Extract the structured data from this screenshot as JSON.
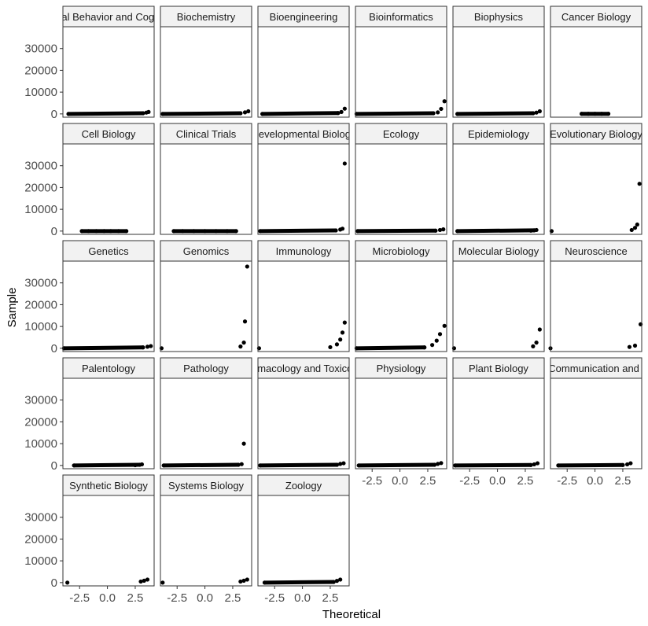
{
  "chart_data": {
    "type": "scatter",
    "subtype": "faceted normal Q-Q plot",
    "xlabel": "Theoretical",
    "ylabel": "Sample",
    "ylim": [
      -1500,
      40000
    ],
    "xlim": [
      -4.0,
      4.2
    ],
    "y_ticks": [
      0,
      10000,
      20000,
      30000
    ],
    "y_tick_labels": [
      "0",
      "10000",
      "20000",
      "30000"
    ],
    "x_ticks": [
      -2.5,
      0.0,
      2.5
    ],
    "x_tick_labels": [
      "-2.5",
      "0.0",
      "2.5"
    ],
    "grid": false,
    "facets": [
      {
        "label": "Animal Behavior and Cognition",
        "points": [
          [
            -3.5,
            0
          ],
          [
            3.2,
            300
          ],
          [
            3.5,
            600
          ],
          [
            3.7,
            900
          ]
        ]
      },
      {
        "label": "Biochemistry",
        "points": [
          [
            -3.8,
            0
          ],
          [
            3.2,
            300
          ],
          [
            3.6,
            700
          ],
          [
            3.9,
            1200
          ]
        ]
      },
      {
        "label": "Bioengineering",
        "points": [
          [
            -3.6,
            0
          ],
          [
            3.2,
            400
          ],
          [
            3.5,
            900
          ],
          [
            3.8,
            2400
          ]
        ]
      },
      {
        "label": "Bioinformatics",
        "points": [
          [
            -3.9,
            0
          ],
          [
            3.0,
            300
          ],
          [
            3.4,
            700
          ],
          [
            3.7,
            2300
          ],
          [
            4.0,
            5800
          ]
        ]
      },
      {
        "label": "Biophysics",
        "points": [
          [
            -3.6,
            0
          ],
          [
            3.2,
            300
          ],
          [
            3.5,
            600
          ],
          [
            3.8,
            1200
          ]
        ]
      },
      {
        "label": "Cancer Biology",
        "points": [
          [
            -1.2,
            50
          ],
          [
            -0.6,
            50
          ],
          [
            0.0,
            50
          ],
          [
            0.6,
            50
          ],
          [
            1.2,
            50
          ]
        ]
      },
      {
        "label": "Cell Biology",
        "points": [
          [
            -2.3,
            0
          ],
          [
            -1.7,
            0
          ],
          [
            -1.0,
            0
          ],
          [
            -0.3,
            0
          ],
          [
            0.3,
            0
          ],
          [
            1.0,
            0
          ],
          [
            1.7,
            0
          ]
        ]
      },
      {
        "label": "Clinical Trials",
        "points": [
          [
            -2.8,
            0
          ],
          [
            -2.0,
            0
          ],
          [
            -1.0,
            0
          ],
          [
            0.0,
            0
          ],
          [
            1.0,
            0
          ],
          [
            2.0,
            0
          ],
          [
            2.8,
            0
          ]
        ]
      },
      {
        "label": "Developmental Biology",
        "points": [
          [
            -3.8,
            0
          ],
          [
            3.0,
            300
          ],
          [
            3.4,
            700
          ],
          [
            3.6,
            1100
          ],
          [
            3.8,
            31000
          ]
        ]
      },
      {
        "label": "Ecology",
        "points": [
          [
            -3.8,
            0
          ],
          [
            3.2,
            200
          ],
          [
            3.6,
            500
          ],
          [
            3.9,
            800
          ]
        ]
      },
      {
        "label": "Epidemiology",
        "points": [
          [
            -3.6,
            0
          ],
          [
            3.0,
            200
          ],
          [
            3.3,
            350
          ],
          [
            3.5,
            500
          ]
        ]
      },
      {
        "label": "Evolutionary Biology",
        "points": [
          [
            -3.9,
            0
          ],
          [
            3.3,
            500
          ],
          [
            3.6,
            1500
          ],
          [
            3.8,
            3000
          ],
          [
            4.0,
            21700
          ]
        ]
      },
      {
        "label": "Genetics",
        "points": [
          [
            -3.9,
            0
          ],
          [
            3.2,
            400
          ],
          [
            3.6,
            700
          ],
          [
            3.9,
            1000
          ]
        ]
      },
      {
        "label": "Genomics",
        "points": [
          [
            -3.9,
            0
          ],
          [
            3.2,
            800
          ],
          [
            3.5,
            2600
          ],
          [
            3.6,
            12300
          ],
          [
            3.8,
            37500
          ]
        ]
      },
      {
        "label": "Immunology",
        "points": [
          [
            -3.9,
            0
          ],
          [
            2.5,
            500
          ],
          [
            3.1,
            1800
          ],
          [
            3.4,
            4000
          ],
          [
            3.6,
            7200
          ],
          [
            3.8,
            11800
          ]
        ]
      },
      {
        "label": "Microbiology",
        "points": [
          [
            -3.9,
            0
          ],
          [
            2.2,
            400
          ],
          [
            2.9,
            1500
          ],
          [
            3.3,
            3500
          ],
          [
            3.6,
            6500
          ],
          [
            4.0,
            10300
          ]
        ]
      },
      {
        "label": "Molecular Biology",
        "points": [
          [
            -3.9,
            0
          ],
          [
            3.2,
            900
          ],
          [
            3.5,
            2600
          ],
          [
            3.8,
            8600
          ]
        ]
      },
      {
        "label": "Neuroscience",
        "points": [
          [
            -4.0,
            0
          ],
          [
            3.1,
            600
          ],
          [
            3.6,
            1200
          ],
          [
            4.1,
            11000
          ]
        ]
      },
      {
        "label": "Palentology",
        "points": [
          [
            -3.0,
            0
          ],
          [
            2.5,
            100
          ],
          [
            2.9,
            300
          ],
          [
            3.1,
            500
          ]
        ]
      },
      {
        "label": "Pathology",
        "points": [
          [
            -3.7,
            0
          ],
          [
            3.0,
            300
          ],
          [
            3.3,
            600
          ],
          [
            3.5,
            10000
          ]
        ]
      },
      {
        "label": "Pharmacology and Toxicology",
        "points": [
          [
            -3.8,
            0
          ],
          [
            3.1,
            300
          ],
          [
            3.4,
            700
          ],
          [
            3.7,
            1000
          ]
        ]
      },
      {
        "label": "Physiology",
        "points": [
          [
            -3.7,
            0
          ],
          [
            3.1,
            300
          ],
          [
            3.4,
            700
          ],
          [
            3.7,
            1100
          ]
        ]
      },
      {
        "label": "Plant Biology",
        "points": [
          [
            -3.8,
            0
          ],
          [
            3.0,
            200
          ],
          [
            3.3,
            500
          ],
          [
            3.6,
            1000
          ]
        ]
      },
      {
        "label": "Scientific Communication and Education",
        "points": [
          [
            -3.3,
            0
          ],
          [
            2.5,
            200
          ],
          [
            2.9,
            500
          ],
          [
            3.2,
            1000
          ]
        ]
      },
      {
        "label": "Synthetic Biology",
        "points": [
          [
            -3.6,
            0
          ],
          [
            3.0,
            500
          ],
          [
            3.3,
            900
          ],
          [
            3.6,
            1400
          ]
        ]
      },
      {
        "label": "Systems Biology",
        "points": [
          [
            -3.8,
            0
          ],
          [
            3.2,
            500
          ],
          [
            3.5,
            900
          ],
          [
            3.8,
            1400
          ]
        ]
      },
      {
        "label": "Zoology",
        "points": [
          [
            -3.4,
            0
          ],
          [
            2.8,
            300
          ],
          [
            3.1,
            800
          ],
          [
            3.4,
            1400
          ]
        ]
      }
    ]
  }
}
